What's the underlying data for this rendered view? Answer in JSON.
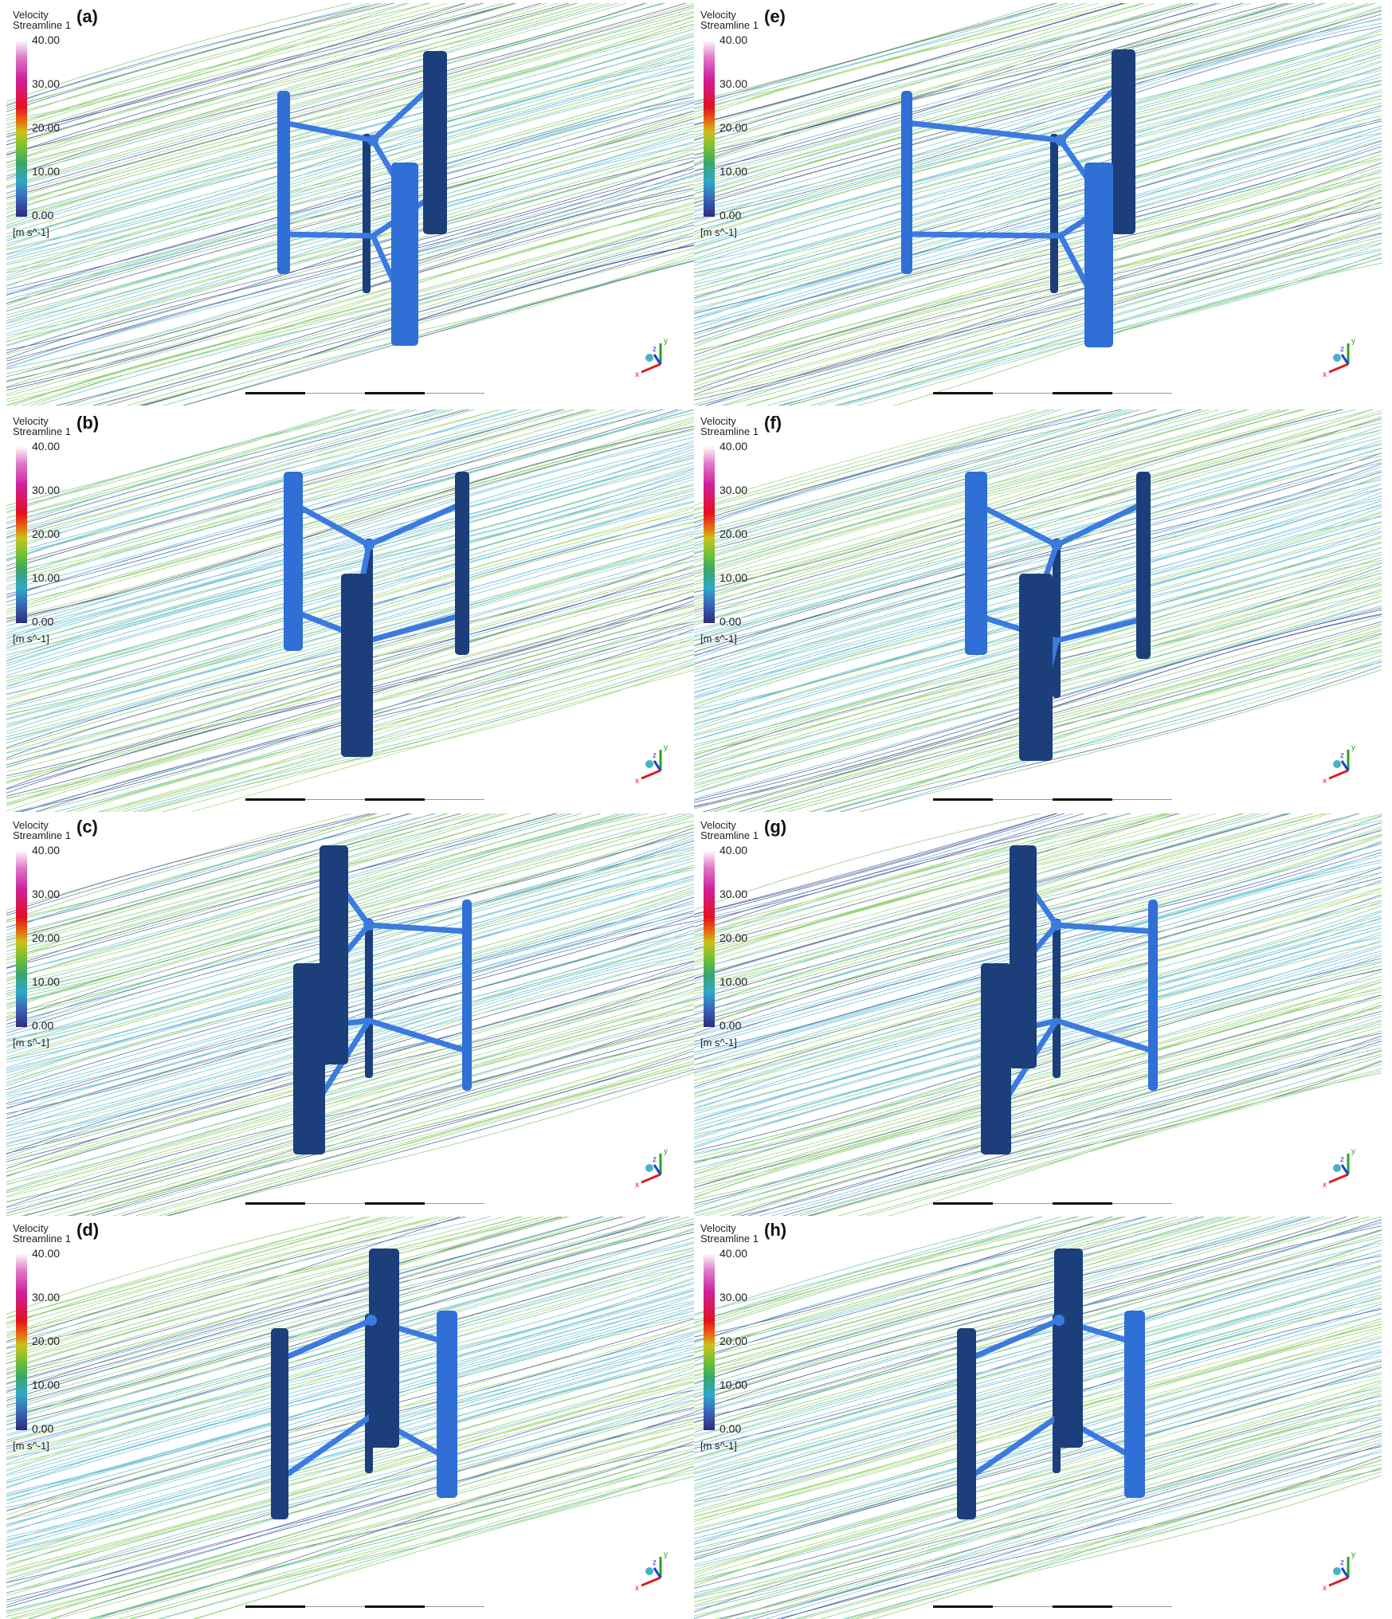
{
  "panels": [
    {
      "id": "a",
      "label": "(a)"
    },
    {
      "id": "b",
      "label": "(b)"
    },
    {
      "id": "c",
      "label": "(c)"
    },
    {
      "id": "d",
      "label": "(d)"
    },
    {
      "id": "e",
      "label": "(e)"
    },
    {
      "id": "f",
      "label": "(f)"
    },
    {
      "id": "g",
      "label": "(g)"
    },
    {
      "id": "h",
      "label": "(h)"
    }
  ],
  "legend": {
    "title_line1": "Velocity",
    "title_line2": "Streamline 1",
    "ticks": [
      "40.00",
      "30.00",
      "20.00",
      "10.00",
      "0.00"
    ],
    "unit": "[m s^-1]"
  },
  "triad": {
    "x": "x",
    "y": "y",
    "z": "z"
  },
  "colors": {
    "blade": "#2f6fd6",
    "blade_dark": "#1c3f7c",
    "stream_green": "#6cbf55",
    "stream_cyan": "#4ab2c8",
    "stream_dark": "#2a3f8a"
  }
}
